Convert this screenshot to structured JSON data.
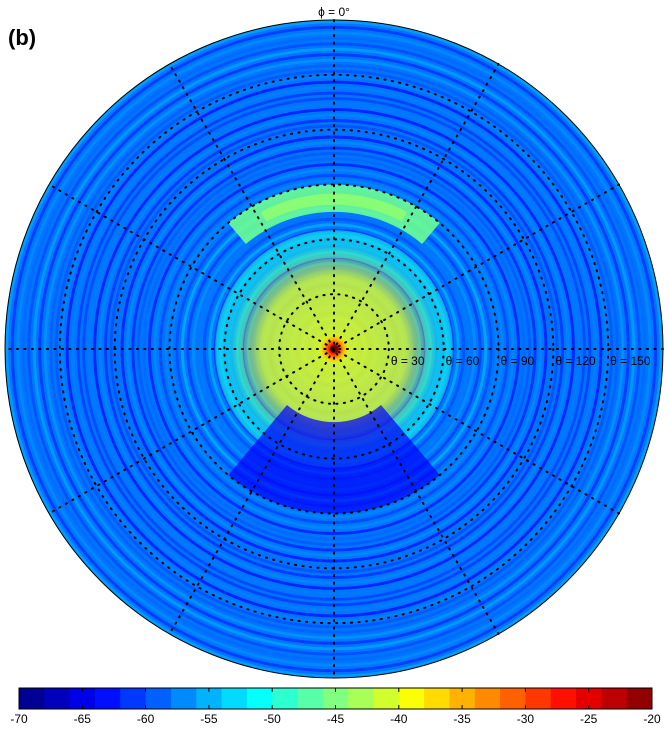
{
  "panel_label": "(b)",
  "phi_label": "ϕ = 0°",
  "theta_labels": [
    "θ = 30",
    "θ = 60",
    "θ = 90",
    "θ = 120",
    "θ = 150"
  ],
  "colorbar": {
    "min": -70,
    "max": -20,
    "step": 2,
    "ticks": [
      "-70",
      "-65",
      "-60",
      "-55",
      "-50",
      "-45",
      "-40",
      "-35",
      "-30",
      "-25",
      "-20"
    ],
    "colormap": "jet"
  },
  "chart_data": {
    "type": "heatmap",
    "projection": "polar",
    "title": "",
    "angular_reference": "ϕ = 0°",
    "radial_axis": {
      "quantity": "θ",
      "range": [
        0,
        180
      ],
      "ring_labels": [
        30,
        60,
        90,
        120,
        150
      ],
      "grid_rings": [
        30,
        60,
        90,
        120,
        150
      ]
    },
    "angular_grid_degrees": [
      0,
      30,
      60,
      90,
      120,
      150,
      180,
      210,
      240,
      270,
      300,
      330
    ],
    "grid": true,
    "color_range": [
      -70,
      -20
    ],
    "peak": {
      "theta": 0,
      "value": -20
    },
    "features": [
      {
        "description": "bright band",
        "theta_range": [
          75,
          90
        ],
        "phi_range": [
          -40,
          40
        ],
        "value": -46
      },
      {
        "description": "ring",
        "theta_range": [
          50,
          65
        ],
        "value": -50
      },
      {
        "description": "inner disc",
        "theta_range": [
          0,
          30
        ],
        "value": -48
      },
      {
        "description": "background",
        "value": -58
      },
      {
        "description": "dark fringe region",
        "theta_range": [
          40,
          90
        ],
        "phi_range": [
          140,
          220
        ],
        "value": -64
      }
    ]
  }
}
